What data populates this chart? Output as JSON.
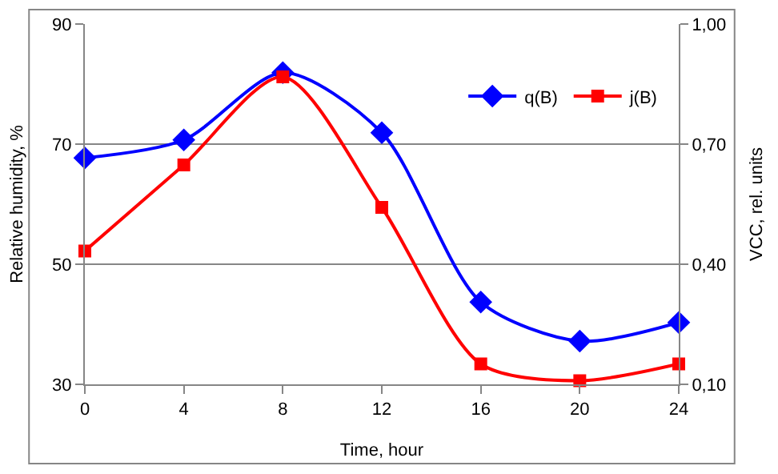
{
  "chart_data": {
    "type": "line",
    "xlabel": "Time, hour",
    "ylabel": "Relative humidity, %",
    "y2label": "VCC, rel. units",
    "x": [
      0,
      4,
      8,
      12,
      16,
      20,
      24
    ],
    "series": [
      {
        "name": "q(B)",
        "color": "#0000ff",
        "marker": "diamond",
        "values": [
          67.7,
          70.7,
          81.9,
          71.9,
          43.7,
          37.2,
          40.3
        ]
      },
      {
        "name": "j(B)",
        "color": "#ff0000",
        "marker": "square",
        "axis": "y2",
        "values": [
          0.433,
          0.648,
          0.868,
          0.542,
          0.151,
          0.109,
          0.151
        ]
      }
    ],
    "xlim": [
      0,
      24
    ],
    "xticks": [
      0,
      4,
      8,
      12,
      16,
      20,
      24
    ],
    "ylim": [
      30,
      90
    ],
    "yticks": [
      30,
      50,
      70,
      90
    ],
    "y2lim": [
      0.1,
      1.0
    ],
    "y2ticks": [
      {
        "value": 0.1,
        "label": "0,10"
      },
      {
        "value": 0.4,
        "label": "0,40"
      },
      {
        "value": 0.7,
        "label": "0,70"
      },
      {
        "value": 1.0,
        "label": "1,00"
      }
    ],
    "grid": "y",
    "legend": "top right",
    "line_style": "solid"
  }
}
